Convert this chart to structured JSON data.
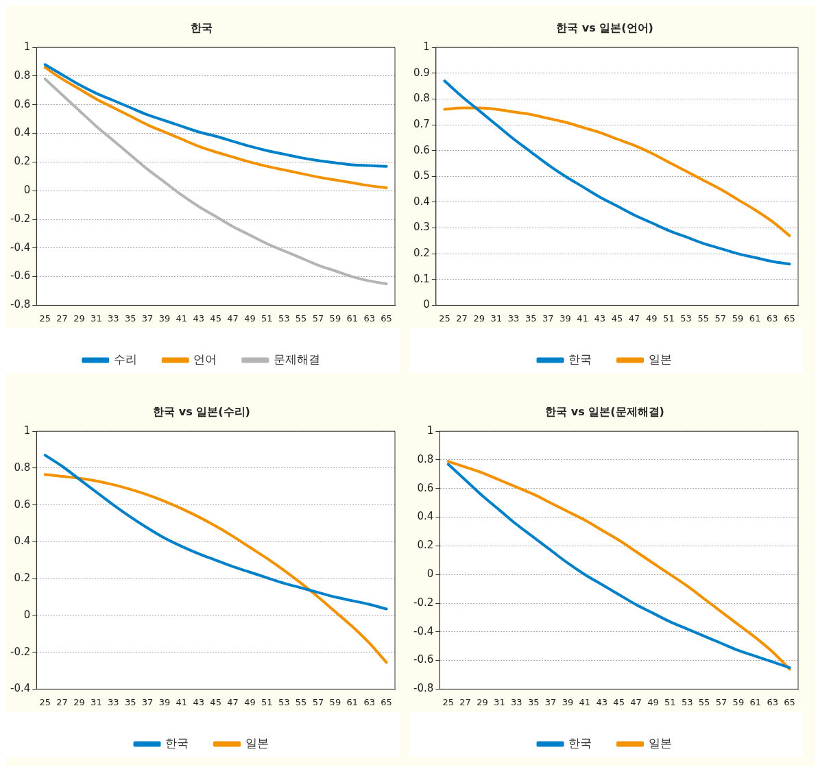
{
  "chart_data": [
    {
      "type": "line",
      "title": "한국",
      "categories": [
        "25",
        "27",
        "29",
        "31",
        "33",
        "35",
        "37",
        "39",
        "41",
        "43",
        "45",
        "47",
        "49",
        "51",
        "53",
        "55",
        "57",
        "59",
        "61",
        "63",
        "65"
      ],
      "ylim": [
        -0.8,
        1
      ],
      "yticks": [
        -0.8,
        -0.6,
        -0.4,
        -0.2,
        0,
        0.2,
        0.4,
        0.6,
        0.8,
        1
      ],
      "grid": "y",
      "legend": "bottom",
      "marker": "none",
      "line_style": "solid",
      "series": [
        {
          "name": "수리",
          "color": "#0080c8",
          "values": [
            0.88,
            0.81,
            0.74,
            0.68,
            0.63,
            0.58,
            0.53,
            0.49,
            0.45,
            0.41,
            0.38,
            0.345,
            0.31,
            0.28,
            0.255,
            0.23,
            0.21,
            0.195,
            0.18,
            0.175,
            0.17
          ]
        },
        {
          "name": "언어",
          "color": "#f39200",
          "values": [
            0.86,
            0.78,
            0.71,
            0.64,
            0.58,
            0.52,
            0.46,
            0.41,
            0.36,
            0.31,
            0.27,
            0.235,
            0.2,
            0.17,
            0.145,
            0.12,
            0.095,
            0.075,
            0.055,
            0.035,
            0.02
          ]
        },
        {
          "name": "문제해결",
          "color": "#b4b4b4",
          "values": [
            0.78,
            0.67,
            0.56,
            0.45,
            0.35,
            0.25,
            0.15,
            0.06,
            -0.03,
            -0.11,
            -0.18,
            -0.25,
            -0.31,
            -0.37,
            -0.42,
            -0.47,
            -0.52,
            -0.56,
            -0.6,
            -0.63,
            -0.65
          ]
        }
      ]
    },
    {
      "type": "line",
      "title": "한국 vs 일본(언어)",
      "categories": [
        "25",
        "27",
        "29",
        "31",
        "33",
        "35",
        "37",
        "39",
        "41",
        "43",
        "45",
        "47",
        "49",
        "51",
        "53",
        "55",
        "57",
        "59",
        "61",
        "63",
        "65"
      ],
      "ylim": [
        0,
        1
      ],
      "yticks": [
        0,
        0.1,
        0.2,
        0.3,
        0.4,
        0.5,
        0.6,
        0.7,
        0.8,
        0.9,
        1
      ],
      "grid": "y",
      "legend": "bottom",
      "marker": "none",
      "line_style": "solid",
      "series": [
        {
          "name": "한국",
          "color": "#0080c8",
          "values": [
            0.87,
            0.81,
            0.755,
            0.7,
            0.645,
            0.595,
            0.545,
            0.5,
            0.46,
            0.42,
            0.385,
            0.35,
            0.32,
            0.29,
            0.265,
            0.24,
            0.22,
            0.2,
            0.185,
            0.17,
            0.16
          ]
        },
        {
          "name": "일본",
          "color": "#f39200",
          "values": [
            0.76,
            0.765,
            0.765,
            0.76,
            0.75,
            0.74,
            0.725,
            0.71,
            0.69,
            0.67,
            0.645,
            0.62,
            0.59,
            0.555,
            0.52,
            0.485,
            0.45,
            0.41,
            0.37,
            0.325,
            0.27
          ]
        }
      ]
    },
    {
      "type": "line",
      "title": "한국 vs 일본(수리)",
      "categories": [
        "25",
        "27",
        "29",
        "31",
        "33",
        "35",
        "37",
        "39",
        "41",
        "43",
        "45",
        "47",
        "49",
        "51",
        "53",
        "55",
        "57",
        "59",
        "61",
        "63",
        "65"
      ],
      "ylim": [
        -0.4,
        1
      ],
      "yticks": [
        -0.4,
        -0.2,
        0,
        0.2,
        0.4,
        0.6,
        0.8,
        1
      ],
      "grid": "y",
      "legend": "bottom",
      "marker": "none",
      "line_style": "solid",
      "series": [
        {
          "name": "한국",
          "color": "#0080c8",
          "values": [
            0.87,
            0.81,
            0.74,
            0.67,
            0.6,
            0.535,
            0.475,
            0.42,
            0.375,
            0.335,
            0.3,
            0.265,
            0.235,
            0.205,
            0.175,
            0.15,
            0.125,
            0.1,
            0.08,
            0.06,
            0.035
          ]
        },
        {
          "name": "일본",
          "color": "#f39200",
          "values": [
            0.765,
            0.755,
            0.745,
            0.73,
            0.71,
            0.685,
            0.655,
            0.62,
            0.58,
            0.535,
            0.485,
            0.43,
            0.37,
            0.31,
            0.245,
            0.175,
            0.1,
            0.02,
            -0.06,
            -0.15,
            -0.255
          ]
        }
      ]
    },
    {
      "type": "line",
      "title": "한국 vs 일본(문제해결)",
      "categories": [
        "25",
        "27",
        "29",
        "31",
        "33",
        "35",
        "37",
        "39",
        "41",
        "43",
        "45",
        "47",
        "49",
        "51",
        "53",
        "55",
        "57",
        "59",
        "61",
        "63",
        "65"
      ],
      "ylim": [
        -0.8,
        1
      ],
      "yticks": [
        -0.8,
        -0.6,
        -0.4,
        -0.2,
        0,
        0.2,
        0.4,
        0.6,
        0.8,
        1
      ],
      "grid": "y",
      "legend": "bottom",
      "marker": "none",
      "line_style": "solid",
      "series": [
        {
          "name": "한국",
          "color": "#0080c8",
          "values": [
            0.77,
            0.66,
            0.55,
            0.45,
            0.35,
            0.26,
            0.17,
            0.08,
            0,
            -0.07,
            -0.14,
            -0.21,
            -0.27,
            -0.33,
            -0.38,
            -0.43,
            -0.48,
            -0.53,
            -0.57,
            -0.61,
            -0.65
          ]
        },
        {
          "name": "일본",
          "color": "#f39200",
          "values": [
            0.79,
            0.75,
            0.71,
            0.66,
            0.61,
            0.56,
            0.5,
            0.44,
            0.38,
            0.31,
            0.24,
            0.16,
            0.08,
            0,
            -0.08,
            -0.17,
            -0.26,
            -0.35,
            -0.44,
            -0.54,
            -0.66
          ]
        }
      ]
    }
  ]
}
